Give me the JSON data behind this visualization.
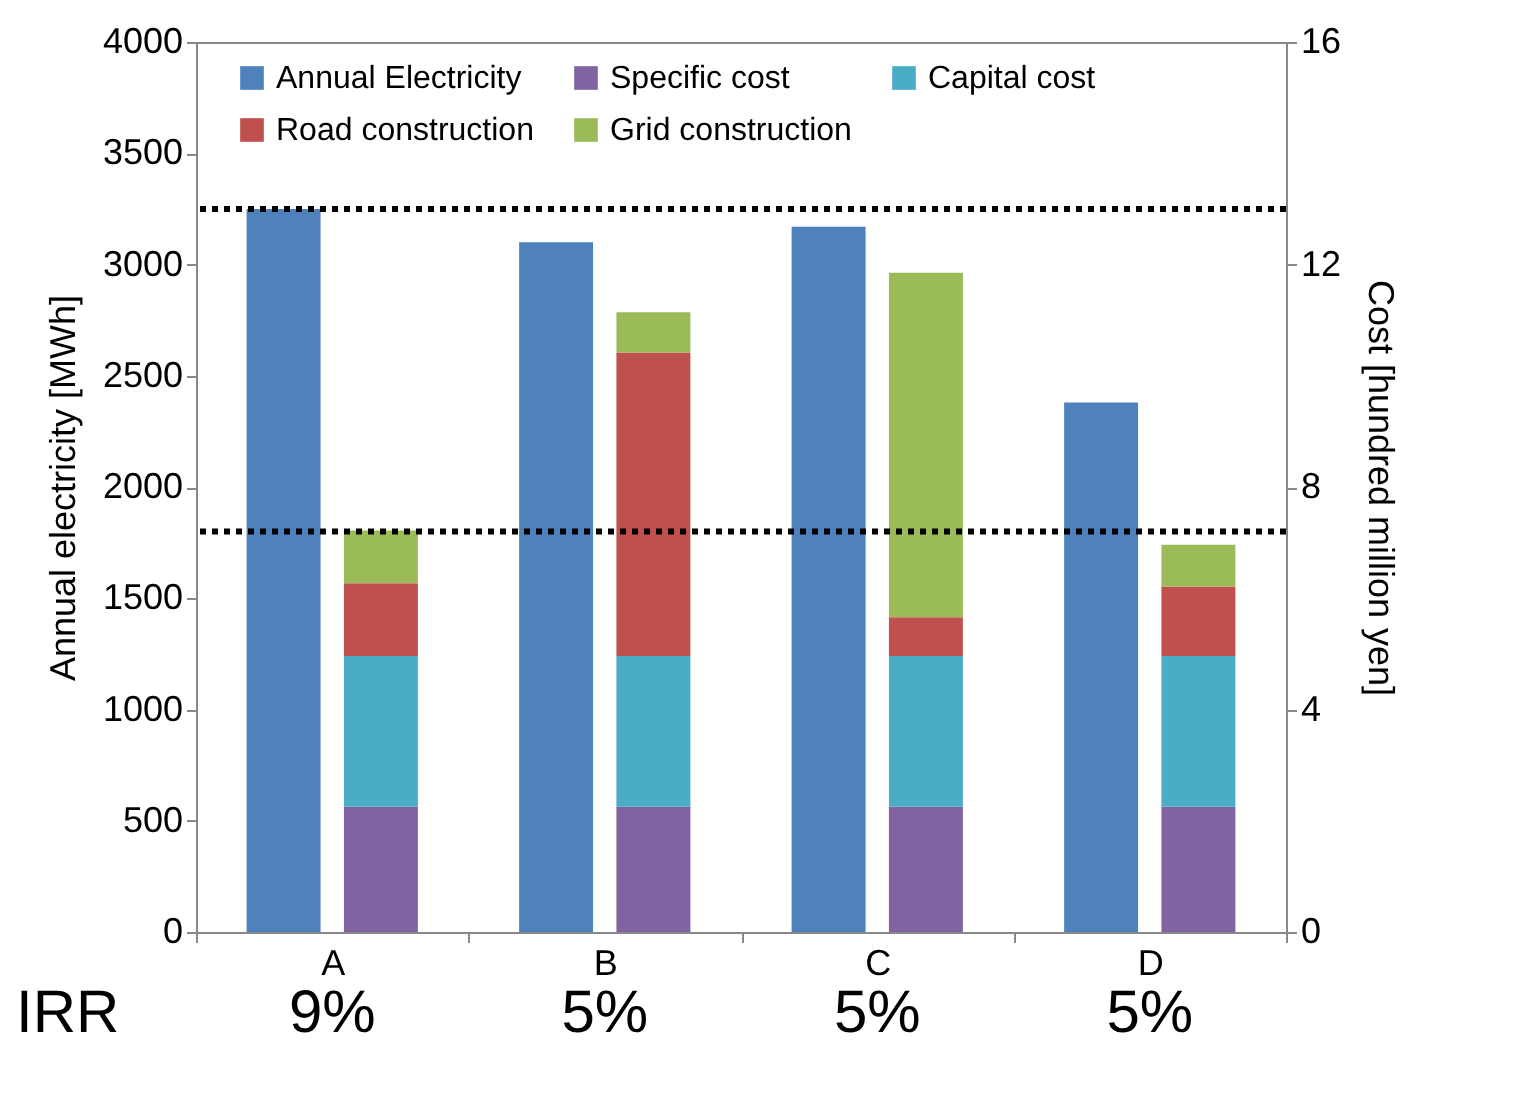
{
  "chart_data": {
    "type": "bar",
    "ylabel": "Annual electricity [MWh]",
    "y2label": "Cost [hundred million yen]",
    "categories": [
      "A",
      "B",
      "C",
      "D"
    ],
    "series": [
      {
        "name": "Annual Electricity",
        "color": "#4f81bd",
        "values": [
          3250,
          3100,
          3170,
          2380
        ]
      },
      {
        "name": "Specific cost",
        "color": "#8064a2",
        "axis": "y2",
        "values": [
          2.25,
          2.25,
          2.25,
          2.25
        ]
      },
      {
        "name": "Capital cost",
        "color": "#4bacc6",
        "axis": "y2",
        "values": [
          2.71,
          2.71,
          2.71,
          2.71
        ]
      },
      {
        "name": "Road construction",
        "color": "#c0504d",
        "axis": "y2",
        "values": [
          1.31,
          5.46,
          0.7,
          1.25
        ]
      },
      {
        "name": "Grid construction",
        "color": "#9bbb59",
        "axis": "y2",
        "values": [
          0.95,
          0.72,
          6.19,
          0.75
        ]
      }
    ],
    "stacked": true,
    "ylim": [
      0,
      4000
    ],
    "yticks": [
      0,
      500,
      1000,
      1500,
      2000,
      2500,
      3000,
      3500,
      4000
    ],
    "y2lim": [
      0,
      16
    ],
    "y2ticks": [
      0,
      4,
      8,
      12,
      16
    ],
    "ref_lines": [
      {
        "axis": "y2",
        "value": 13,
        "line_style": "dotted",
        "color": "#000000"
      },
      {
        "axis": "y2",
        "value": 7.2,
        "line_style": "dotted",
        "color": "#000000"
      }
    ],
    "annotations": [
      "IRR",
      "9%",
      "5%",
      "5%",
      "5%"
    ],
    "legend": "top",
    "grid": false
  }
}
